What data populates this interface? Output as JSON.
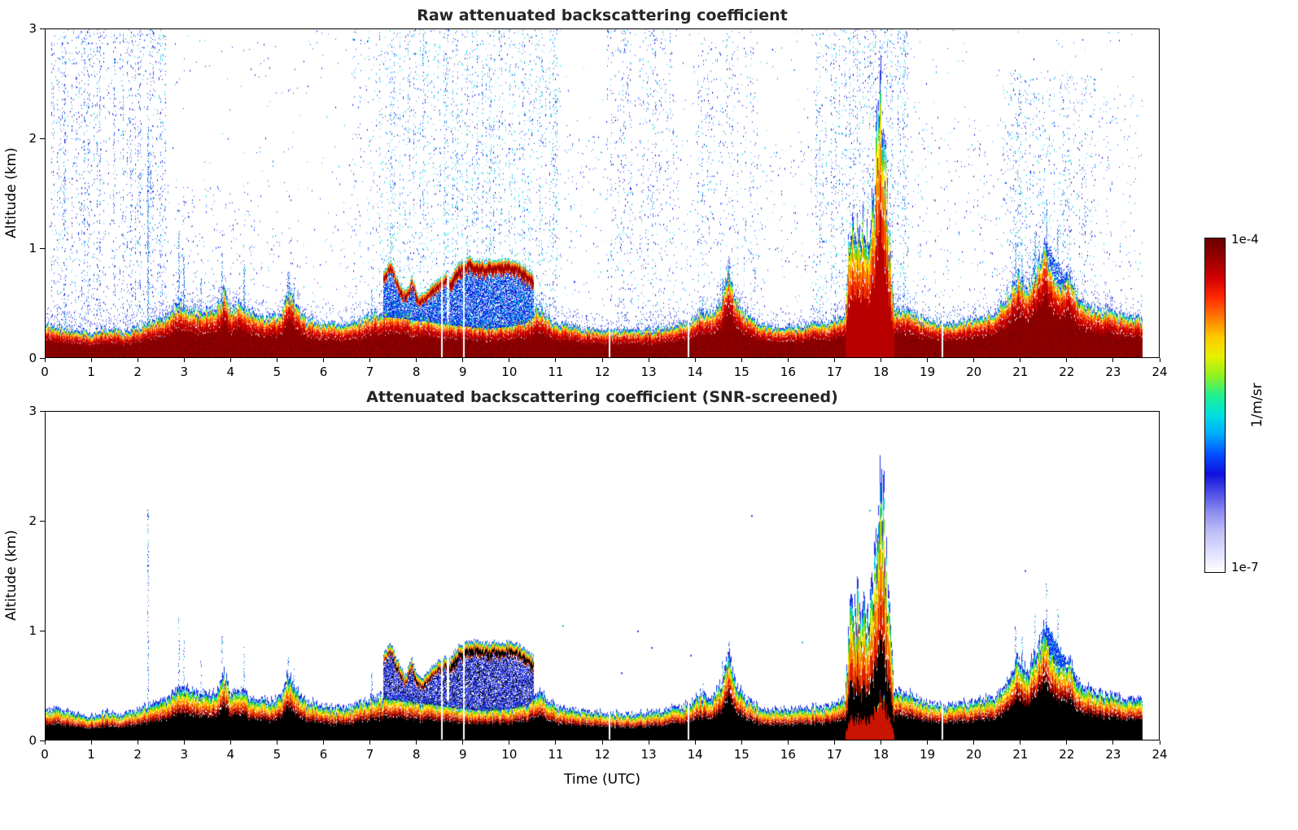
{
  "chart_data": {
    "type": "heatmap",
    "panels": [
      {
        "id": "raw",
        "mode": "raw",
        "title": "Raw attenuated backscattering coefficient"
      },
      {
        "id": "screened",
        "mode": "screened",
        "title": "Attenuated backscattering coefficient (SNR-screened)"
      }
    ],
    "x": {
      "label": "Time (UTC)",
      "min": 0,
      "max": 24,
      "ticks": [
        0,
        1,
        2,
        3,
        4,
        5,
        6,
        7,
        8,
        9,
        10,
        11,
        12,
        13,
        14,
        15,
        16,
        17,
        18,
        19,
        20,
        21,
        22,
        23,
        24
      ]
    },
    "y": {
      "label": "Altitude (km)",
      "min": 0,
      "max": 3,
      "ticks": [
        0,
        1,
        2,
        3
      ]
    },
    "colorbar": {
      "label": "1/m/sr",
      "max_label": "1e-4",
      "min_label": "1e-7",
      "stops": [
        "#ffffff",
        "#e0e0ff",
        "#c0c0f8",
        "#9090f0",
        "#5050e8",
        "#1010dd",
        "#0050ff",
        "#00a8ff",
        "#00e0e0",
        "#20f090",
        "#90f020",
        "#e8f000",
        "#ffc800",
        "#ff7800",
        "#ff2800",
        "#d00000",
        "#980000",
        "#6a0000"
      ]
    },
    "data_end_t": 23.62,
    "boundary_layer": {
      "t": [
        0,
        0.4,
        0.8,
        1.0,
        1.3,
        1.7,
        2.0,
        2.3,
        2.6,
        2.9,
        3.1,
        3.4,
        3.7,
        3.85,
        4.0,
        4.2,
        4.35,
        4.6,
        4.9,
        5.1,
        5.25,
        5.4,
        5.6,
        5.9,
        6.3,
        6.7,
        7.0,
        7.3,
        7.7,
        8.0,
        8.4,
        8.7,
        9.0,
        9.5,
        10.0,
        10.4,
        10.6,
        10.9,
        11.2,
        11.6,
        12.0,
        12.4,
        12.8,
        13.2,
        13.6,
        13.9,
        14.1,
        14.35,
        14.55,
        14.7,
        14.85,
        15.1,
        15.4,
        15.8,
        16.2,
        16.6,
        17.0,
        17.2,
        18.35,
        18.6,
        18.9,
        19.3,
        19.7,
        20.1,
        20.5,
        20.75,
        20.95,
        21.15,
        21.35,
        21.5,
        21.65,
        21.85,
        22.05,
        22.25,
        22.5,
        22.8,
        23.1,
        23.4,
        23.62
      ],
      "h": [
        0.3,
        0.27,
        0.24,
        0.22,
        0.26,
        0.24,
        0.28,
        0.33,
        0.38,
        0.5,
        0.46,
        0.42,
        0.46,
        0.6,
        0.44,
        0.5,
        0.42,
        0.38,
        0.36,
        0.42,
        0.62,
        0.48,
        0.36,
        0.32,
        0.3,
        0.33,
        0.38,
        0.42,
        0.4,
        0.38,
        0.36,
        0.34,
        0.32,
        0.3,
        0.32,
        0.36,
        0.45,
        0.34,
        0.3,
        0.27,
        0.25,
        0.24,
        0.25,
        0.27,
        0.3,
        0.34,
        0.42,
        0.4,
        0.52,
        0.8,
        0.55,
        0.38,
        0.3,
        0.28,
        0.29,
        0.31,
        0.34,
        0.38,
        0.45,
        0.42,
        0.36,
        0.32,
        0.33,
        0.36,
        0.42,
        0.6,
        0.75,
        0.65,
        0.8,
        1.05,
        0.85,
        0.7,
        0.75,
        0.55,
        0.47,
        0.43,
        0.4,
        0.38,
        0.37
      ]
    },
    "clouds": [
      {
        "t": [
          7.3,
          7.45,
          7.6,
          7.75,
          7.9,
          8.05,
          8.2,
          8.35,
          8.5,
          8.65
        ],
        "top": [
          0.8,
          0.88,
          0.72,
          0.6,
          0.74,
          0.56,
          0.6,
          0.68,
          0.74,
          0.76
        ],
        "thick": 0.1
      },
      {
        "t": [
          8.72,
          8.9,
          9.15,
          9.45,
          9.75,
          10.05,
          10.3,
          10.52
        ],
        "top": [
          0.74,
          0.87,
          0.91,
          0.88,
          0.9,
          0.89,
          0.85,
          0.76
        ],
        "thick": 0.13
      }
    ],
    "plume": {
      "t": [
        17.25,
        17.32,
        17.4,
        17.48,
        17.55,
        17.62,
        17.7,
        17.78,
        17.85,
        17.92,
        17.98,
        18.04,
        18.1,
        18.16,
        18.22,
        18.28
      ],
      "h": [
        0.55,
        1.25,
        1.1,
        1.35,
        1.05,
        1.3,
        1.15,
        1.25,
        1.6,
        2.05,
        2.3,
        2.25,
        1.7,
        1.2,
        0.8,
        0.5
      ]
    },
    "blue_blob": {
      "t0": 21.55,
      "t1": 22.3,
      "h0": 0.5,
      "h1": 1.05
    },
    "noise_regions": [
      {
        "t0": 0.0,
        "t1": 23.62,
        "density": 0.03,
        "hmax": 3.0,
        "cyan": 0.3
      },
      {
        "t0": 0.15,
        "t1": 2.6,
        "density": 0.55,
        "hmax": 3.0,
        "cyan": 0.25
      },
      {
        "t0": 2.6,
        "t1": 4.6,
        "density": 0.1,
        "hmax": 1.6,
        "cyan": 0.2
      },
      {
        "t0": 4.6,
        "t1": 6.6,
        "density": 0.04,
        "hmax": 1.2,
        "cyan": 0.2
      },
      {
        "t0": 6.6,
        "t1": 7.2,
        "density": 0.18,
        "hmax": 3.0,
        "cyan": 0.3
      },
      {
        "t0": 7.2,
        "t1": 11.1,
        "density": 0.55,
        "hmax": 3.0,
        "cyan": 0.55
      },
      {
        "t0": 11.1,
        "t1": 12.1,
        "density": 0.07,
        "hmax": 2.2,
        "cyan": 0.3
      },
      {
        "t0": 12.1,
        "t1": 13.6,
        "density": 0.35,
        "hmax": 3.0,
        "cyan": 0.3
      },
      {
        "t0": 13.6,
        "t1": 14.05,
        "density": 0.1,
        "hmax": 2.0,
        "cyan": 0.3
      },
      {
        "t0": 14.05,
        "t1": 15.35,
        "density": 0.3,
        "hmax": 3.0,
        "cyan": 0.35
      },
      {
        "t0": 15.35,
        "t1": 16.6,
        "density": 0.06,
        "hmax": 2.0,
        "cyan": 0.3
      },
      {
        "t0": 16.6,
        "t1": 18.6,
        "density": 0.55,
        "hmax": 3.0,
        "cyan": 0.45
      },
      {
        "t0": 18.6,
        "t1": 20.6,
        "density": 0.08,
        "hmax": 2.2,
        "cyan": 0.3
      },
      {
        "t0": 20.6,
        "t1": 22.6,
        "density": 0.3,
        "hmax": 2.6,
        "cyan": 0.45
      },
      {
        "t0": 22.6,
        "t1": 23.62,
        "density": 0.1,
        "hmax": 2.4,
        "cyan": 0.35
      }
    ],
    "spikes": [
      {
        "t": 2.2,
        "h": 2.1
      },
      {
        "t": 2.87,
        "h": 1.15
      },
      {
        "t": 2.97,
        "h": 0.92
      },
      {
        "t": 3.35,
        "h": 0.72
      },
      {
        "t": 3.8,
        "h": 0.95
      },
      {
        "t": 4.27,
        "h": 0.85
      },
      {
        "t": 5.22,
        "h": 0.78
      },
      {
        "t": 5.35,
        "h": 0.68
      },
      {
        "t": 7.02,
        "h": 0.62
      },
      {
        "t": 14.15,
        "h": 0.55
      },
      {
        "t": 14.58,
        "h": 0.72
      },
      {
        "t": 14.72,
        "h": 0.92
      },
      {
        "t": 20.88,
        "h": 1.05
      },
      {
        "t": 21.02,
        "h": 0.95
      },
      {
        "t": 21.3,
        "h": 1.15
      },
      {
        "t": 21.55,
        "h": 1.45
      },
      {
        "t": 21.8,
        "h": 1.2
      }
    ],
    "screened_dots": [
      {
        "t": 2.2,
        "h": 1.6
      },
      {
        "t": 2.2,
        "h": 2.05
      },
      {
        "t": 11.15,
        "h": 1.05
      },
      {
        "t": 12.75,
        "h": 1.0
      },
      {
        "t": 13.05,
        "h": 0.85
      },
      {
        "t": 13.9,
        "h": 0.78
      },
      {
        "t": 15.2,
        "h": 2.05
      },
      {
        "t": 16.3,
        "h": 0.9
      },
      {
        "t": 12.4,
        "h": 0.62
      },
      {
        "t": 18.0,
        "h": 2.42
      },
      {
        "t": 17.75,
        "h": 2.1
      },
      {
        "t": 21.1,
        "h": 1.55
      }
    ],
    "gaps": [
      8.55,
      9.02,
      12.16,
      13.86,
      19.33
    ]
  }
}
